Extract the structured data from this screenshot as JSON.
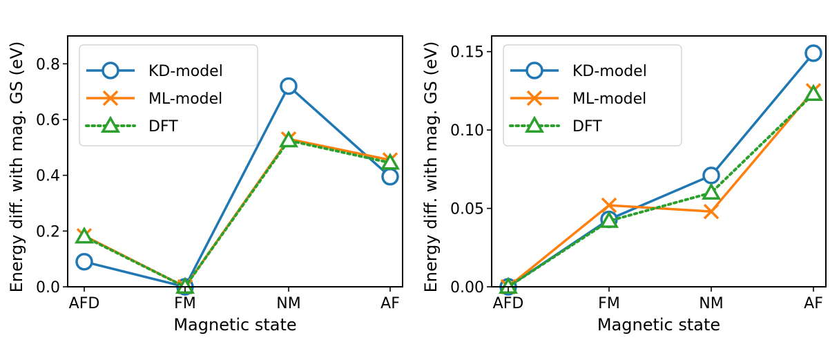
{
  "colors": {
    "kd": "#1f77b4",
    "ml": "#ff7f0e",
    "dft": "#2ca02c"
  },
  "chart_data": [
    {
      "type": "line",
      "categories": [
        "AFD",
        "FM",
        "NM",
        "AF"
      ],
      "xlabel": "Magnetic state",
      "ylabel": "Energy diff. with mag. GS (eV)",
      "ylim": [
        0,
        0.9
      ],
      "yticks": [
        0.0,
        0.2,
        0.4,
        0.6,
        0.8
      ],
      "ytick_labels": [
        "0.0",
        "0.2",
        "0.4",
        "0.6",
        "0.8"
      ],
      "legend_position": "top-left",
      "series": [
        {
          "name": "KD-model",
          "marker": "circle",
          "linestyle": "solid",
          "color_key": "kd",
          "values": [
            0.09,
            0.0,
            0.72,
            0.395
          ]
        },
        {
          "name": "ML-model",
          "marker": "x",
          "linestyle": "solid",
          "color_key": "ml",
          "values": [
            0.183,
            0.0,
            0.53,
            0.455
          ]
        },
        {
          "name": "DFT",
          "marker": "triangle",
          "linestyle": "dotted",
          "color_key": "dft",
          "values": [
            0.18,
            0.0,
            0.525,
            0.445
          ]
        }
      ]
    },
    {
      "type": "line",
      "categories": [
        "AFD",
        "FM",
        "NM",
        "AF"
      ],
      "xlabel": "Magnetic state",
      "ylabel": "Energy diff. with mag. GS (eV)",
      "ylim": [
        0,
        0.16
      ],
      "yticks": [
        0.0,
        0.05,
        0.1,
        0.15
      ],
      "ytick_labels": [
        "0.00",
        "0.05",
        "0.10",
        "0.15"
      ],
      "legend_position": "top-left",
      "series": [
        {
          "name": "KD-model",
          "marker": "circle",
          "linestyle": "solid",
          "color_key": "kd",
          "values": [
            0.0,
            0.043,
            0.071,
            0.149
          ]
        },
        {
          "name": "ML-model",
          "marker": "x",
          "linestyle": "solid",
          "color_key": "ml",
          "values": [
            0.0,
            0.052,
            0.048,
            0.125
          ]
        },
        {
          "name": "DFT",
          "marker": "triangle",
          "linestyle": "dotted",
          "color_key": "dft",
          "values": [
            0.0,
            0.042,
            0.06,
            0.123
          ]
        }
      ]
    }
  ]
}
